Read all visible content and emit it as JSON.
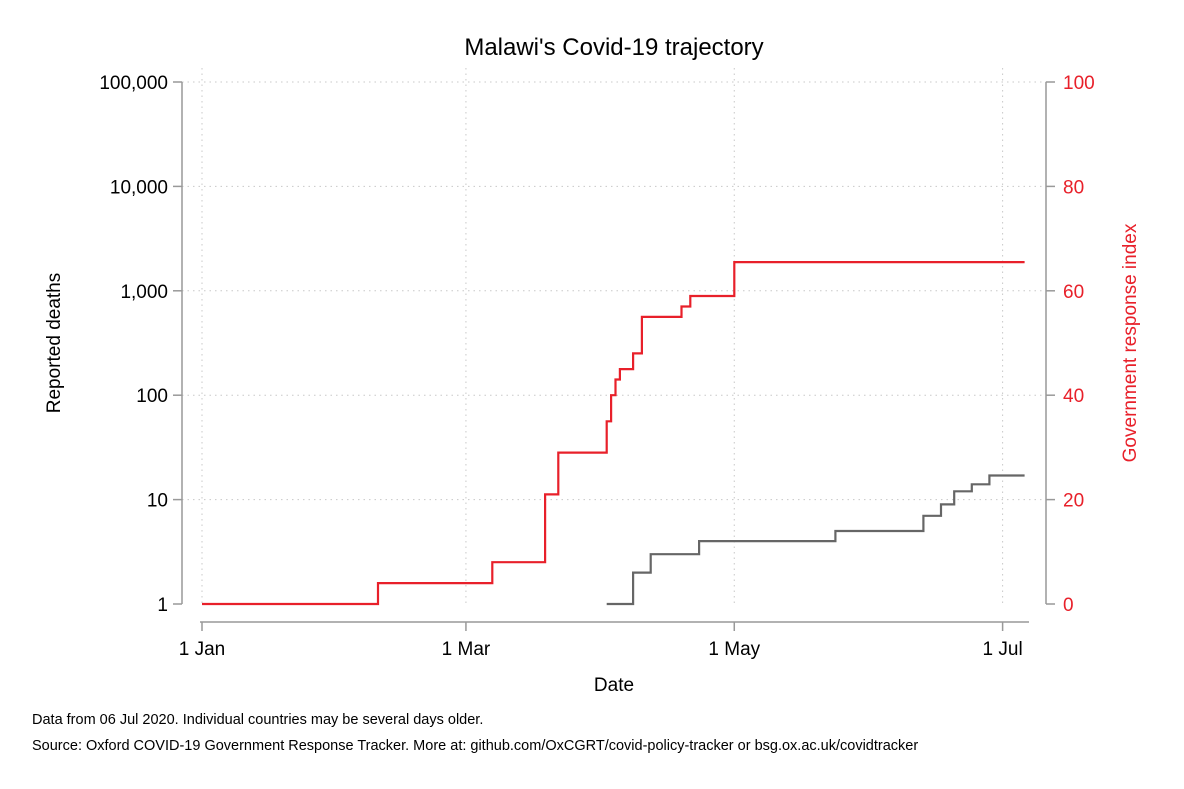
{
  "chart_data": {
    "type": "line",
    "title": "Malawi's Covid-19 trajectory",
    "xlabel": "Date",
    "ylabel": "Reported deaths",
    "y2label": "Government response index",
    "x_ticks": [
      {
        "date": "2020-01-01",
        "label": "1 Jan"
      },
      {
        "date": "2020-03-01",
        "label": "1 Mar"
      },
      {
        "date": "2020-05-01",
        "label": "1 May"
      },
      {
        "date": "2020-07-01",
        "label": "1 Jul"
      }
    ],
    "xlim": [
      "2020-01-01",
      "2020-07-07"
    ],
    "y_scale": "log",
    "ylim": [
      1,
      100000
    ],
    "y_ticks": [
      {
        "value": 1,
        "label": "1"
      },
      {
        "value": 10,
        "label": "10"
      },
      {
        "value": 100,
        "label": "100"
      },
      {
        "value": 1000,
        "label": "1,000"
      },
      {
        "value": 10000,
        "label": "10,000"
      },
      {
        "value": 100000,
        "label": "100,000"
      }
    ],
    "y2lim": [
      0,
      100
    ],
    "y2_ticks": [
      {
        "value": 0,
        "label": "0"
      },
      {
        "value": 20,
        "label": "20"
      },
      {
        "value": 40,
        "label": "40"
      },
      {
        "value": 60,
        "label": "60"
      },
      {
        "value": 80,
        "label": "80"
      },
      {
        "value": 100,
        "label": "100"
      }
    ],
    "grid": true,
    "series": [
      {
        "axis": "left",
        "color": "#666666",
        "step": true,
        "points": [
          [
            "2020-04-02",
            1
          ],
          [
            "2020-04-08",
            2
          ],
          [
            "2020-04-12",
            3
          ],
          [
            "2020-04-23",
            4
          ],
          [
            "2020-05-24",
            5
          ],
          [
            "2020-06-13",
            7
          ],
          [
            "2020-06-17",
            9
          ],
          [
            "2020-06-20",
            12
          ],
          [
            "2020-06-24",
            14
          ],
          [
            "2020-06-28",
            17
          ],
          [
            "2020-07-06",
            17
          ]
        ]
      },
      {
        "axis": "right",
        "color": "#e8202a",
        "step": true,
        "points": [
          [
            "2020-01-01",
            0
          ],
          [
            "2020-02-10",
            4
          ],
          [
            "2020-03-07",
            8
          ],
          [
            "2020-03-19",
            21
          ],
          [
            "2020-03-22",
            29
          ],
          [
            "2020-04-01",
            29
          ],
          [
            "2020-04-02",
            35
          ],
          [
            "2020-04-03",
            40
          ],
          [
            "2020-04-04",
            43
          ],
          [
            "2020-04-05",
            45
          ],
          [
            "2020-04-08",
            48
          ],
          [
            "2020-04-10",
            55
          ],
          [
            "2020-04-19",
            57
          ],
          [
            "2020-04-21",
            59
          ],
          [
            "2020-04-30",
            59
          ],
          [
            "2020-05-01",
            65.5
          ],
          [
            "2020-07-06",
            65.5
          ]
        ]
      }
    ]
  },
  "notes": {
    "line1": "Data from 06 Jul 2020. Individual countries may be several days older.",
    "line2": "Source: Oxford COVID-19 Government Response Tracker. More at: github.com/OxCGRT/covid-policy-tracker or bsg.ox.ac.uk/covidtracker"
  },
  "colors": {
    "left_axis": "#000000",
    "right_axis": "#e8202a",
    "axis_line": "#999999",
    "grid": "#c8c8c8"
  }
}
